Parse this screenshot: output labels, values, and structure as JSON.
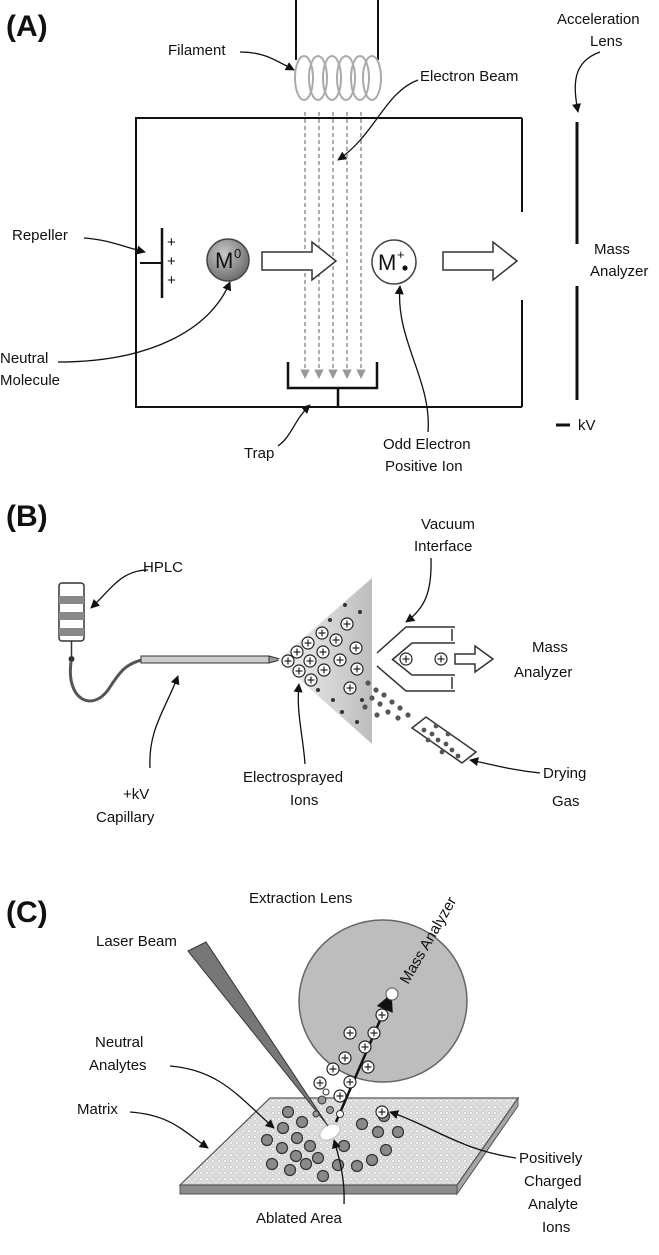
{
  "panels": [
    {
      "letter": "(A)",
      "labels": {
        "filament": "Filament",
        "electron_beam": "Electron Beam",
        "acceleration_lens_1": "Acceleration",
        "acceleration_lens_2": "Lens",
        "repeller": "Repeller",
        "mass_analyzer_1": "Mass",
        "mass_analyzer_2": "Analyzer",
        "neutral_molecule_1": "Neutral",
        "neutral_molecule_2": "Molecule",
        "trap": "Trap",
        "odd_ion_1": "Odd Electron",
        "odd_ion_2": "Positive Ion",
        "kv": "kV",
        "molecule_symbol": "M",
        "molecule_superscript": "0",
        "ion_symbol": "M",
        "ion_superscript": "+",
        "repeller_charge": "+"
      }
    },
    {
      "letter": "(B)",
      "labels": {
        "hplc": "HPLC",
        "vacuum_1": "Vacuum",
        "vacuum_2": "Interface",
        "mass_analyzer_1": "Mass",
        "mass_analyzer_2": "Analyzer",
        "capillary_1": "+kV",
        "capillary_2": "Capillary",
        "electrosprayed_1": "Electrosprayed",
        "electrosprayed_2": "Ions",
        "drying_1": "Drying",
        "drying_2": "Gas"
      }
    },
    {
      "letter": "(C)",
      "labels": {
        "extraction_lens": "Extraction Lens",
        "laser_beam": "Laser Beam",
        "mass_analyzer": "Mass Analyzer",
        "neutral_1": "Neutral",
        "neutral_2": "Analytes",
        "matrix": "Matrix",
        "ablated_area": "Ablated Area",
        "positive_1": "Positively",
        "positive_2": "Charged",
        "positive_3": "Analyte",
        "positive_4": "Ions"
      }
    }
  ]
}
